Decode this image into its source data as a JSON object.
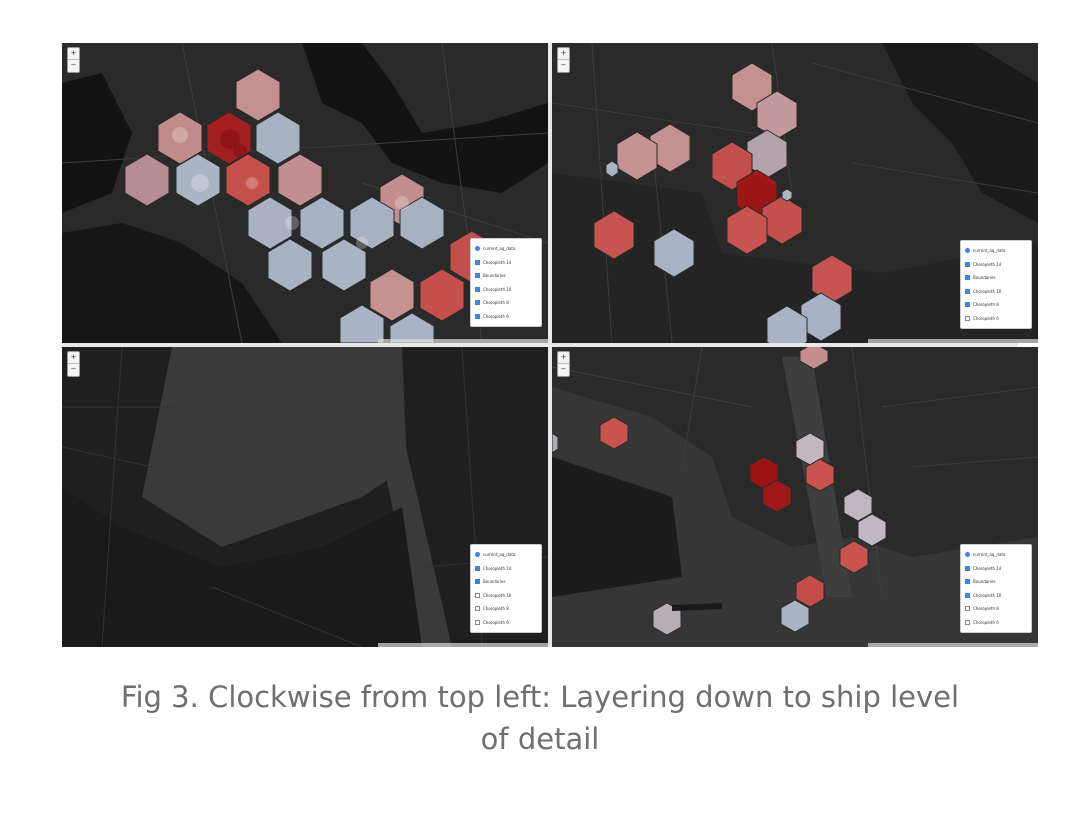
{
  "caption": {
    "line1": "Fig 3. Clockwise from top left: Layering down to ship level",
    "line2": "of detail"
  },
  "zoom": {
    "in": "+",
    "out": "−"
  },
  "colors": {
    "land": "#2a2a2a",
    "water": "#121212",
    "road": "#3d3d3d",
    "hex_dark_red": "#9e1b1b",
    "hex_red": "#c9554f",
    "hex_pink": "#c98f8f",
    "hex_blue": "#a9b4c4",
    "checkbox": "#3a86e0"
  },
  "panels": [
    {
      "position": "top-left",
      "layers": [
        {
          "label": "current_aq_data",
          "type": "radio",
          "checked": true
        },
        {
          "label": "Choropleth 14",
          "type": "checkbox",
          "checked": true
        },
        {
          "label": "Boundaries",
          "type": "checkbox",
          "checked": true
        },
        {
          "label": "Choropleth 10",
          "type": "checkbox",
          "checked": true
        },
        {
          "label": "Choropleth 8",
          "type": "checkbox",
          "checked": true
        },
        {
          "label": "Choropleth 6",
          "type": "checkbox",
          "checked": true
        }
      ]
    },
    {
      "position": "top-right",
      "layers": [
        {
          "label": "current_aq_data",
          "type": "radio",
          "checked": true
        },
        {
          "label": "Choropleth 14",
          "type": "checkbox",
          "checked": true
        },
        {
          "label": "Boundaries",
          "type": "checkbox",
          "checked": true
        },
        {
          "label": "Choropleth 10",
          "type": "checkbox",
          "checked": true
        },
        {
          "label": "Choropleth 8",
          "type": "checkbox",
          "checked": true
        },
        {
          "label": "Choropleth 6",
          "type": "checkbox",
          "checked": false
        }
      ]
    },
    {
      "position": "bottom-left",
      "layers": [
        {
          "label": "current_aq_data",
          "type": "radio",
          "checked": true
        },
        {
          "label": "Choropleth 14",
          "type": "checkbox",
          "checked": true
        },
        {
          "label": "Boundaries",
          "type": "checkbox",
          "checked": true
        },
        {
          "label": "Choropleth 10",
          "type": "checkbox",
          "checked": false
        },
        {
          "label": "Choropleth 8",
          "type": "checkbox",
          "checked": false
        },
        {
          "label": "Choropleth 6",
          "type": "checkbox",
          "checked": false
        }
      ]
    },
    {
      "position": "bottom-right",
      "layers": [
        {
          "label": "current_aq_data",
          "type": "radio",
          "checked": true
        },
        {
          "label": "Choropleth 14",
          "type": "checkbox",
          "checked": true
        },
        {
          "label": "Boundaries",
          "type": "checkbox",
          "checked": true
        },
        {
          "label": "Choropleth 10",
          "type": "checkbox",
          "checked": true
        },
        {
          "label": "Choropleth 8",
          "type": "checkbox",
          "checked": false
        },
        {
          "label": "Choropleth 6",
          "type": "checkbox",
          "checked": false
        }
      ]
    }
  ]
}
